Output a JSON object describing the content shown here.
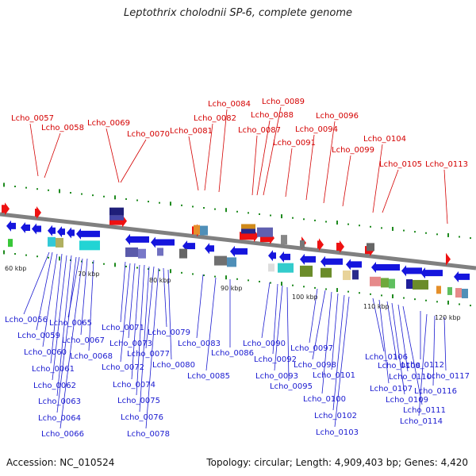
{
  "title": "Leptothrix cholodnii SP-6, complete genome",
  "accession_text": "Accession: NC_010524",
  "topology_text": "Topology: circular; Length: 4,909,403 bp; Genes: 4,420",
  "colors": {
    "top_label": "#d40000",
    "bottom_label": "#1a1ad0",
    "forward_gene": "#ee1111",
    "reverse_gene": "#1515dd",
    "tick": "#1e8a1e",
    "backbone": "#808080"
  },
  "kbp_labels": [
    "60 kbp",
    "70 kbp",
    "80 kbp",
    "90 kbp",
    "100 kbp",
    "110 kbp",
    "120 kbp"
  ],
  "top_labels": [
    "Lcho_0057",
    "Lcho_0058",
    "Lcho_0069",
    "Lcho_0070",
    "Lcho_0081",
    "Lcho_0082",
    "Lcho_0084",
    "Lcho_0087",
    "Lcho_0088",
    "Lcho_0089",
    "Lcho_0091",
    "Lcho_0094",
    "Lcho_0096",
    "Lcho_0099",
    "Lcho_0104",
    "Lcho_0105",
    "Lcho_0113"
  ],
  "bottom_labels": [
    "Lcho_0056",
    "Lcho_0059",
    "Lcho_0060",
    "Lcho_0061",
    "Lcho_0062",
    "Lcho_0063",
    "Lcho_0064",
    "Lcho_0065",
    "Lcho_0066",
    "Lcho_0067",
    "Lcho_0068",
    "Lcho_0071",
    "Lcho_0072",
    "Lcho_0073",
    "Lcho_0074",
    "Lcho_0075",
    "Lcho_0076",
    "Lcho_0077",
    "Lcho_0078",
    "Lcho_0079",
    "Lcho_0080",
    "Lcho_0083",
    "Lcho_0085",
    "Lcho_0086",
    "Lcho_0090",
    "Lcho_0092",
    "Lcho_0093",
    "Lcho_0095",
    "Lcho_0097",
    "Lcho_0098",
    "Lcho_0100",
    "Lcho_0101",
    "Lcho_0102",
    "Lcho_0103",
    "Lcho_0106",
    "Lcho_0107",
    "Lcho_0108",
    "Lcho_0109",
    "Lcho_0110",
    "Lcho_0111",
    "Lcho_0112",
    "Lcho_0114",
    "Lcho_0116",
    "Lcho_0117"
  ]
}
